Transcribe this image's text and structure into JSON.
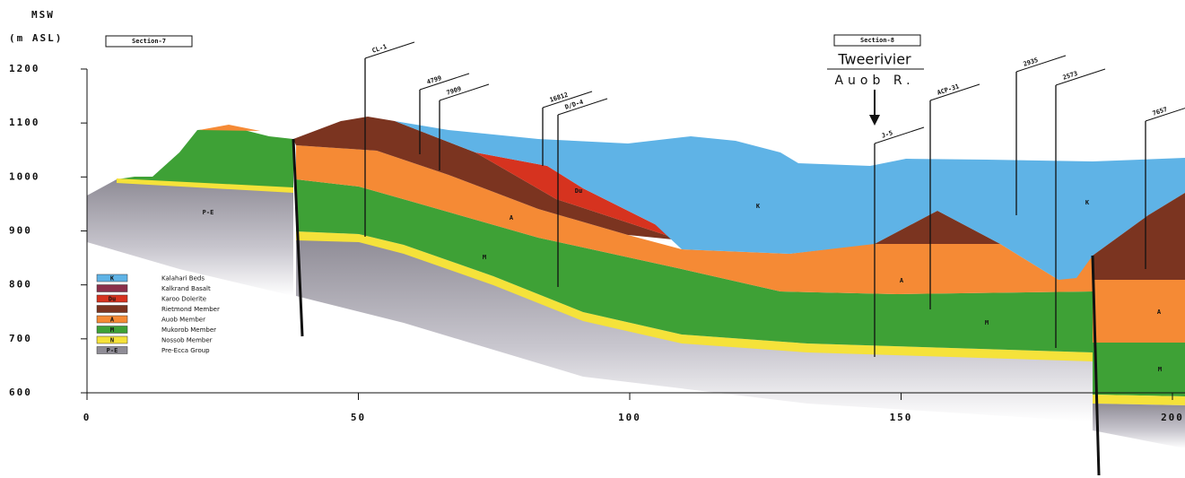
{
  "axis": {
    "y_label_line1": "MSW",
    "y_label_line2": "(m ASL)",
    "yticks": [
      600,
      700,
      800,
      900,
      1000,
      1100,
      1200
    ],
    "xticks": [
      0,
      50,
      100,
      150,
      200
    ]
  },
  "sections": [
    "Section-7",
    "Section-8"
  ],
  "place": {
    "name": "Tweerivier",
    "river": "Auob R."
  },
  "boreholes": [
    {
      "label": "CL-1"
    },
    {
      "label": "4799"
    },
    {
      "label": "7909"
    },
    {
      "label": "16812"
    },
    {
      "label": "D/D-4"
    },
    {
      "label": "J-5"
    },
    {
      "label": "ACP-31"
    },
    {
      "label": "2935"
    },
    {
      "label": "2573"
    },
    {
      "label": "7657"
    }
  ],
  "legend": [
    {
      "code": "K",
      "label": "Kalahari Beds"
    },
    {
      "label": "Kalkrand Basalt"
    },
    {
      "code": "Du",
      "label": "Karoo Dolerite"
    },
    {
      "label": "Rietmond Member"
    },
    {
      "code": "A",
      "label": "Auob Member"
    },
    {
      "code": "M",
      "label": "Mukorob Member"
    },
    {
      "code": "N",
      "label": "Nossob Member"
    },
    {
      "code": "P-E",
      "label": "Pre-Ecca Group"
    }
  ],
  "layer_labels": [
    "P-E",
    "K",
    "Du",
    "A",
    "M",
    "A",
    "M",
    "K",
    "A",
    "M"
  ]
}
